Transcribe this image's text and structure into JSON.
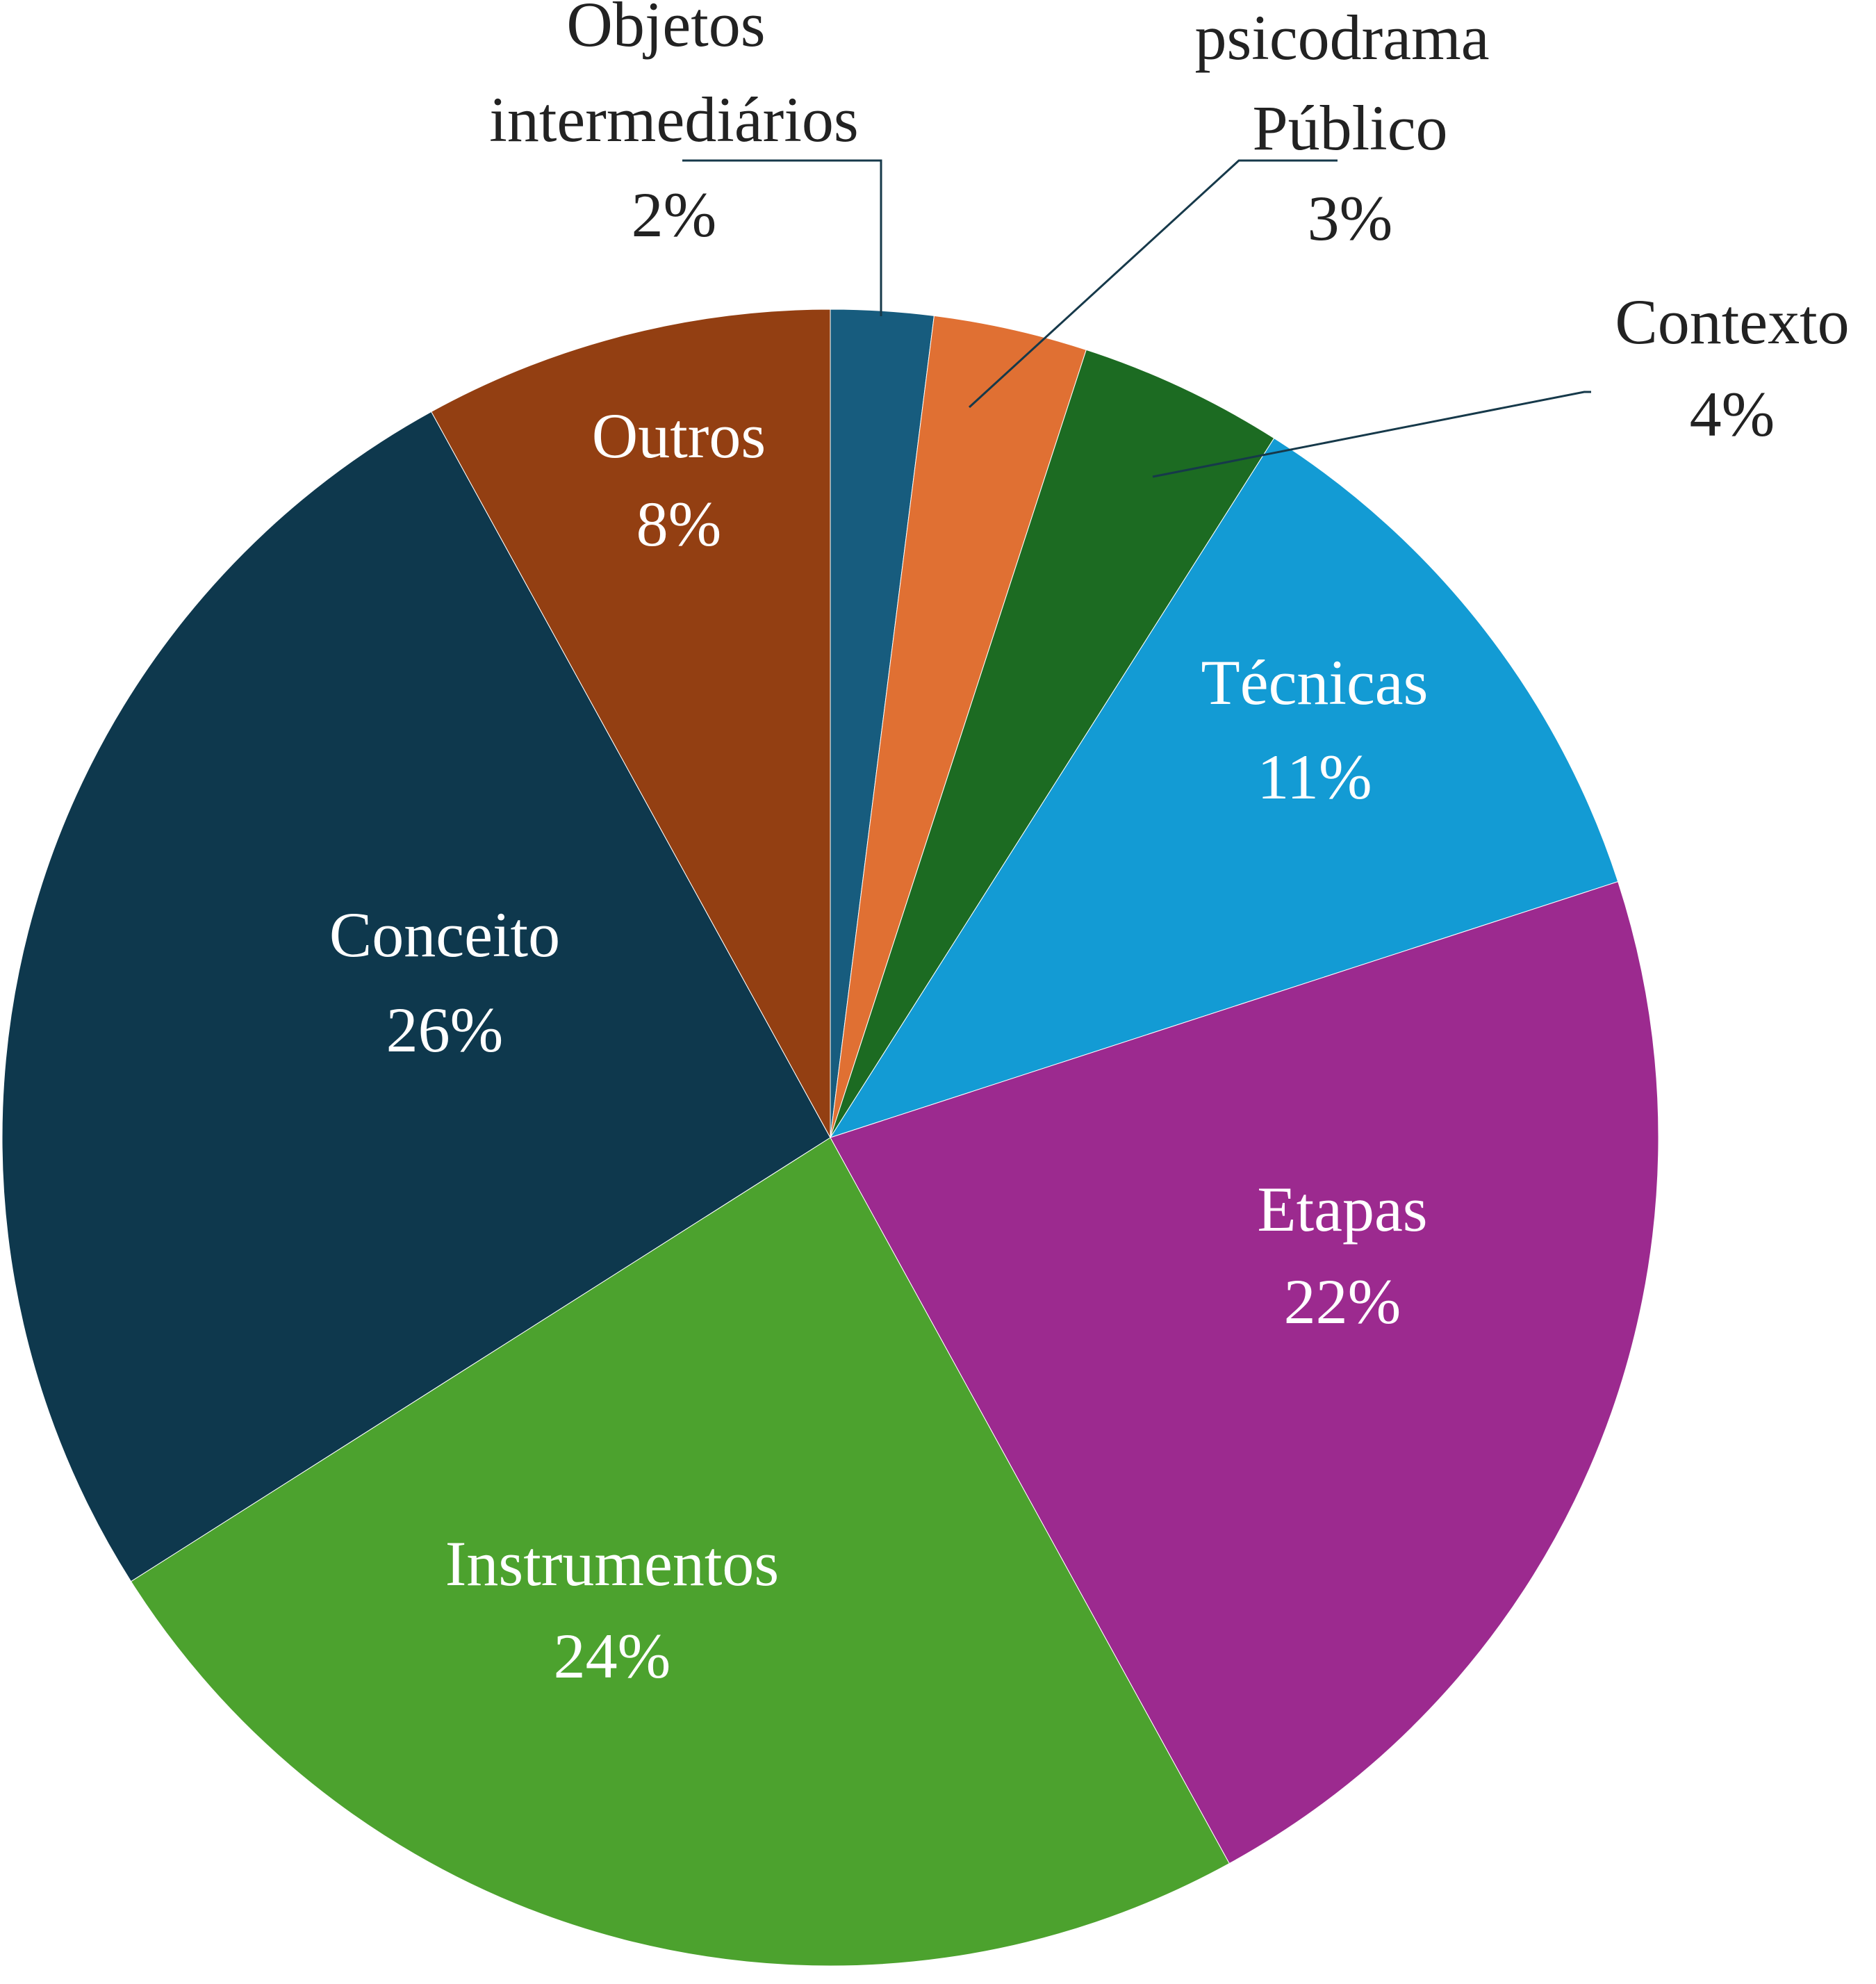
{
  "chart_data": {
    "type": "pie",
    "categories": [
      "Objetos intermediários",
      "psicodrama Público",
      "Contexto",
      "Técnicas",
      "Etapas",
      "Instrumentos",
      "Conceito",
      "Outros"
    ],
    "values": [
      2,
      3,
      4,
      11,
      22,
      24,
      26,
      8
    ],
    "value_labels": [
      "2%",
      "3%",
      "4%",
      "11%",
      "22%",
      "24%",
      "26%",
      "8%"
    ],
    "colors": [
      "#175c7e",
      "#e07033",
      "#1c6b22",
      "#139bd4",
      "#9c2a8f",
      "#4ca22e",
      "#0e384d",
      "#933f12"
    ]
  }
}
